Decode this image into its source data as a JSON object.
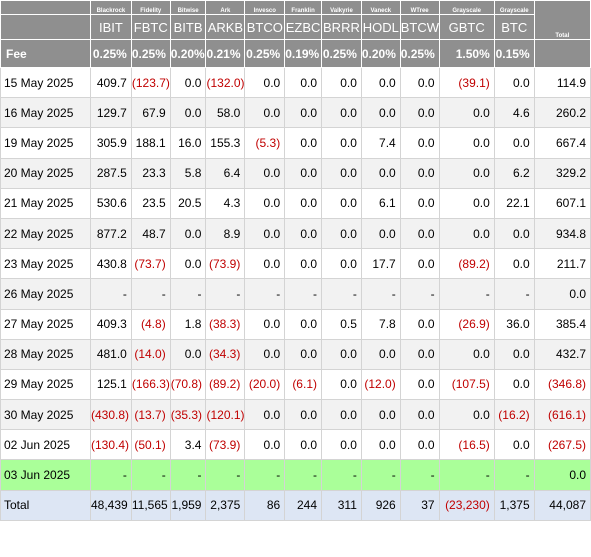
{
  "header": {
    "total_label": "Total",
    "fee_label": "Fee",
    "funds": [
      {
        "issuer": "Blackrock",
        "ticker": "IBIT",
        "fee": "0.25%"
      },
      {
        "issuer": "Fidelity",
        "ticker": "FBTC",
        "fee": "0.25%"
      },
      {
        "issuer": "Bitwise",
        "ticker": "BITB",
        "fee": "0.20%"
      },
      {
        "issuer": "Ark",
        "ticker": "ARKB",
        "fee": "0.21%"
      },
      {
        "issuer": "Invesco",
        "ticker": "BTCO",
        "fee": "0.25%"
      },
      {
        "issuer": "Franklin",
        "ticker": "EZBC",
        "fee": "0.19%"
      },
      {
        "issuer": "Valkyrie",
        "ticker": "BRRR",
        "fee": "0.25%"
      },
      {
        "issuer": "Vaneck",
        "ticker": "HODL",
        "fee": "0.20%"
      },
      {
        "issuer": "WTree",
        "ticker": "BTCW",
        "fee": "0.25%"
      },
      {
        "issuer": "Grayscale",
        "ticker": "GBTC",
        "fee": "1.50%"
      },
      {
        "issuer": "Grayscale",
        "ticker": "BTC",
        "fee": "0.15%"
      }
    ]
  },
  "rows": [
    {
      "date": "15 May 2025",
      "values": [
        "409.7",
        "(123.7)",
        "0.0",
        "(132.0)",
        "0.0",
        "0.0",
        "0.0",
        "0.0",
        "0.0",
        "(39.1)",
        "0.0"
      ],
      "total": "114.9"
    },
    {
      "date": "16 May 2025",
      "values": [
        "129.7",
        "67.9",
        "0.0",
        "58.0",
        "0.0",
        "0.0",
        "0.0",
        "0.0",
        "0.0",
        "0.0",
        "4.6"
      ],
      "total": "260.2"
    },
    {
      "date": "19 May 2025",
      "values": [
        "305.9",
        "188.1",
        "16.0",
        "155.3",
        "(5.3)",
        "0.0",
        "0.0",
        "7.4",
        "0.0",
        "0.0",
        "0.0"
      ],
      "total": "667.4"
    },
    {
      "date": "20 May 2025",
      "values": [
        "287.5",
        "23.3",
        "5.8",
        "6.4",
        "0.0",
        "0.0",
        "0.0",
        "0.0",
        "0.0",
        "0.0",
        "6.2"
      ],
      "total": "329.2"
    },
    {
      "date": "21 May 2025",
      "values": [
        "530.6",
        "23.5",
        "20.5",
        "4.3",
        "0.0",
        "0.0",
        "0.0",
        "6.1",
        "0.0",
        "0.0",
        "22.1"
      ],
      "total": "607.1"
    },
    {
      "date": "22 May 2025",
      "values": [
        "877.2",
        "48.7",
        "0.0",
        "8.9",
        "0.0",
        "0.0",
        "0.0",
        "0.0",
        "0.0",
        "0.0",
        "0.0"
      ],
      "total": "934.8"
    },
    {
      "date": "23 May 2025",
      "values": [
        "430.8",
        "(73.7)",
        "0.0",
        "(73.9)",
        "0.0",
        "0.0",
        "0.0",
        "17.7",
        "0.0",
        "(89.2)",
        "0.0"
      ],
      "total": "211.7"
    },
    {
      "date": "26 May 2025",
      "values": [
        "-",
        "-",
        "-",
        "-",
        "-",
        "-",
        "-",
        "-",
        "-",
        "-",
        "-"
      ],
      "total": "0.0"
    },
    {
      "date": "27 May 2025",
      "values": [
        "409.3",
        "(4.8)",
        "1.8",
        "(38.3)",
        "0.0",
        "0.0",
        "0.5",
        "7.8",
        "0.0",
        "(26.9)",
        "36.0"
      ],
      "total": "385.4"
    },
    {
      "date": "28 May 2025",
      "values": [
        "481.0",
        "(14.0)",
        "0.0",
        "(34.3)",
        "0.0",
        "0.0",
        "0.0",
        "0.0",
        "0.0",
        "0.0",
        "0.0"
      ],
      "total": "432.7"
    },
    {
      "date": "29 May 2025",
      "values": [
        "125.1",
        "(166.3)",
        "(70.8)",
        "(89.2)",
        "(20.0)",
        "(6.1)",
        "0.0",
        "(12.0)",
        "0.0",
        "(107.5)",
        "0.0"
      ],
      "total": "(346.8)"
    },
    {
      "date": "30 May 2025",
      "values": [
        "(430.8)",
        "(13.7)",
        "(35.3)",
        "(120.1)",
        "0.0",
        "0.0",
        "0.0",
        "0.0",
        "0.0",
        "0.0",
        "(16.2)"
      ],
      "total": "(616.1)"
    },
    {
      "date": "02 Jun 2025",
      "values": [
        "(130.4)",
        "(50.1)",
        "3.4",
        "(73.9)",
        "0.0",
        "0.0",
        "0.0",
        "0.0",
        "0.0",
        "(16.5)",
        "0.0"
      ],
      "total": "(267.5)"
    },
    {
      "date": "03 Jun 2025",
      "values": [
        "-",
        "-",
        "-",
        "-",
        "-",
        "-",
        "-",
        "-",
        "-",
        "-",
        "-"
      ],
      "total": "0.0"
    }
  ],
  "totals": {
    "label": "Total",
    "values": [
      "48,439",
      "11,565",
      "1,959",
      "2,375",
      "86",
      "244",
      "311",
      "926",
      "37",
      "(23,230)",
      "1,375"
    ],
    "total": "44,087"
  },
  "colors": {
    "header_bg": "#8f8f8f",
    "negative": "#c00000",
    "highlight_row": "#aaff99",
    "total_row": "#dde6f4"
  }
}
